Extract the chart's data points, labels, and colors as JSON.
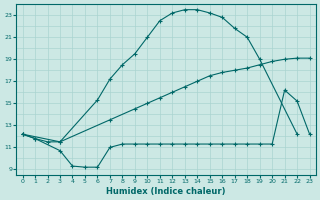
{
  "xlabel": "Humidex (Indice chaleur)",
  "bg_color": "#cce8e4",
  "grid_color": "#aad4d0",
  "line_color": "#006868",
  "xlim": [
    -0.5,
    23.5
  ],
  "ylim": [
    8.5,
    24.0
  ],
  "xticks": [
    0,
    1,
    2,
    3,
    4,
    5,
    6,
    7,
    8,
    9,
    10,
    11,
    12,
    13,
    14,
    15,
    16,
    17,
    18,
    19,
    20,
    21,
    22,
    23
  ],
  "yticks": [
    9,
    11,
    13,
    15,
    17,
    19,
    21,
    23
  ],
  "curve1_x": [
    0,
    1,
    2,
    3,
    6,
    7,
    8,
    9,
    10,
    11,
    12,
    13,
    14,
    15,
    16,
    17,
    18,
    19,
    22
  ],
  "curve1_y": [
    12.2,
    11.8,
    11.5,
    11.5,
    15.3,
    17.2,
    18.5,
    19.5,
    21.0,
    22.5,
    23.2,
    23.5,
    23.5,
    23.2,
    22.8,
    21.8,
    21.0,
    19.0,
    12.2
  ],
  "curve2_x": [
    0,
    3,
    7,
    9,
    10,
    11,
    12,
    13,
    14,
    15,
    16,
    17,
    18,
    19,
    20,
    21,
    22,
    23
  ],
  "curve2_y": [
    12.2,
    11.5,
    13.5,
    14.5,
    15.0,
    15.5,
    16.0,
    16.5,
    17.0,
    17.5,
    17.8,
    18.0,
    18.2,
    18.5,
    18.8,
    19.0,
    19.1,
    19.1
  ],
  "curve3_x": [
    0,
    1,
    3,
    4,
    5,
    6,
    7,
    8,
    9,
    10,
    11,
    12,
    13,
    14,
    15,
    16,
    17,
    18,
    19,
    20,
    21,
    22,
    23
  ],
  "curve3_y": [
    12.2,
    11.8,
    10.7,
    9.3,
    9.2,
    9.2,
    11.0,
    11.3,
    11.3,
    11.3,
    11.3,
    11.3,
    11.3,
    11.3,
    11.3,
    11.3,
    11.3,
    11.3,
    11.3,
    11.3,
    16.2,
    15.2,
    12.2
  ]
}
